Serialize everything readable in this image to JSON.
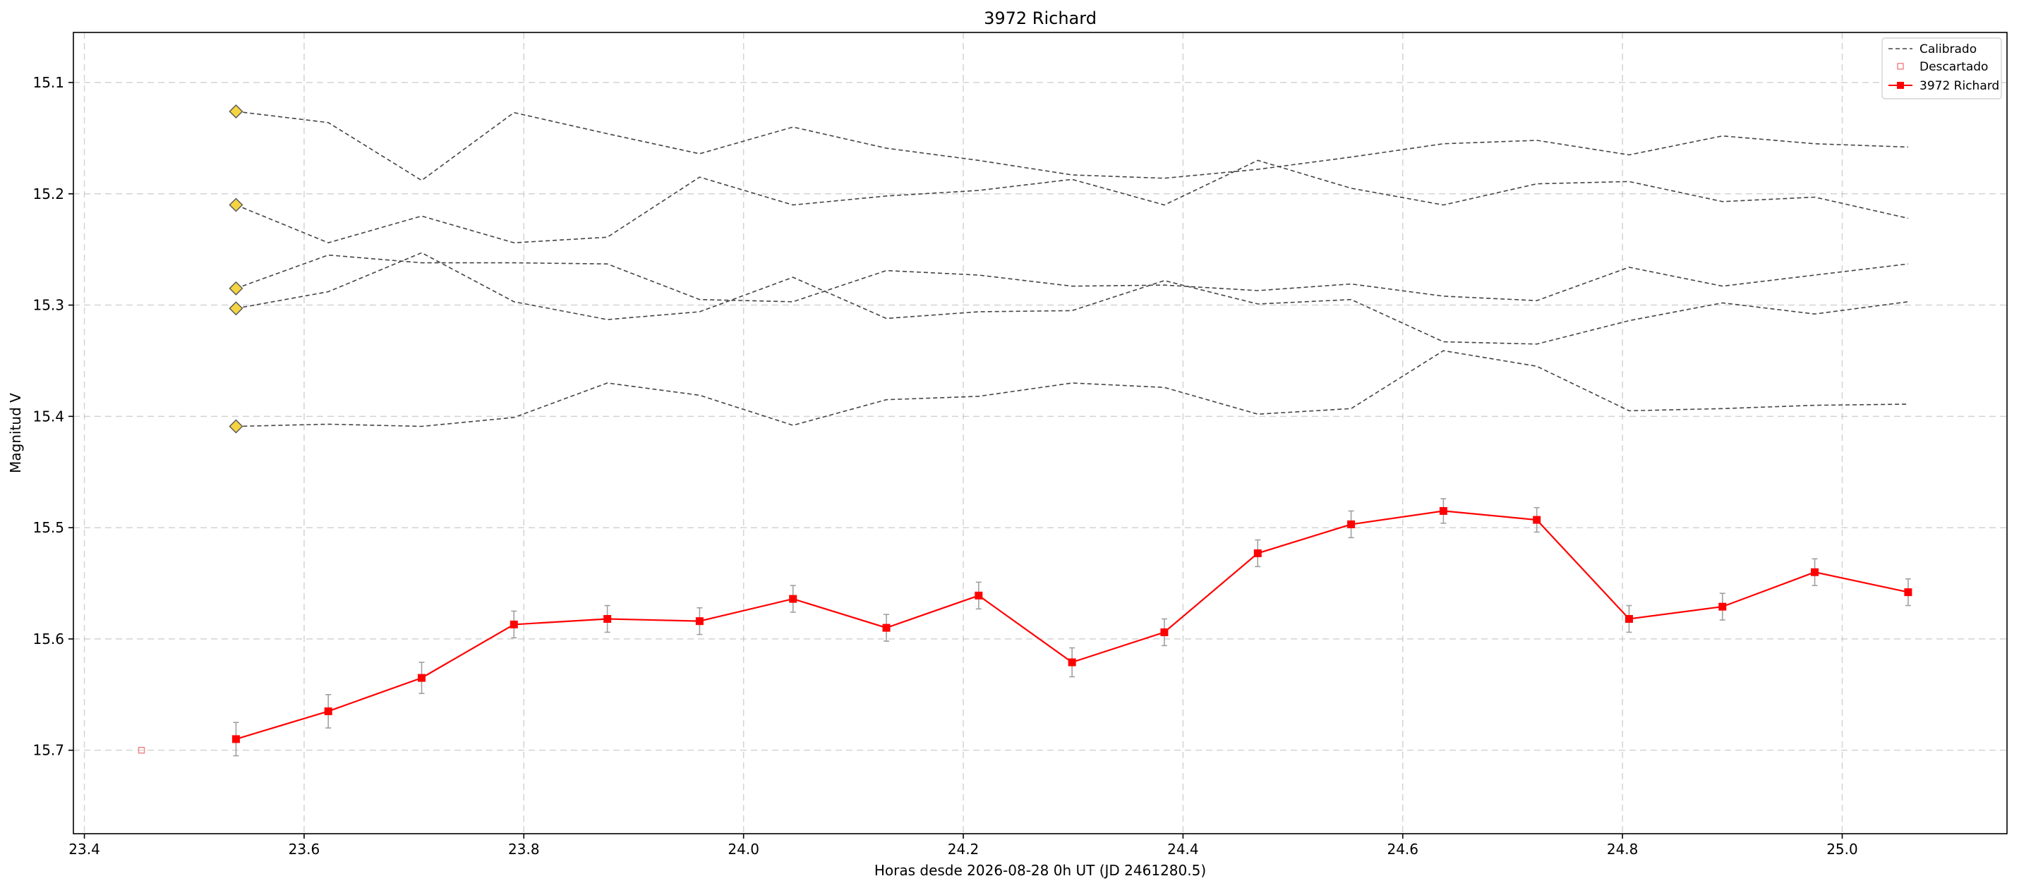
{
  "chart_data": {
    "type": "line",
    "title": "3972 Richard",
    "xlabel": "Horas desde 2026-08-28 0h UT (JD 2461280.5)",
    "ylabel": "Magnitud V",
    "xlim": [
      23.39,
      25.15
    ],
    "ylim": [
      15.775,
      15.055
    ],
    "y_inverted": true,
    "grid": true,
    "legend_position": "top-right",
    "x_ticks": [
      23.4,
      23.6,
      23.8,
      24.0,
      24.2,
      24.4,
      24.6,
      24.8,
      25.0
    ],
    "x_tick_labels": [
      "23.4",
      "23.6",
      "23.8",
      "24.0",
      "24.2",
      "24.4",
      "24.6",
      "24.8",
      "25.0"
    ],
    "y_ticks": [
      15.1,
      15.2,
      15.3,
      15.4,
      15.5,
      15.6,
      15.7
    ],
    "y_tick_labels": [
      "15.1",
      "15.2",
      "15.3",
      "15.4",
      "15.5",
      "15.6",
      "15.7"
    ],
    "legend": [
      {
        "label": "Calibrado",
        "style": "dashed-line",
        "color": "#444444"
      },
      {
        "label": "Descartado",
        "style": "hollow-square",
        "color": "#f08080"
      },
      {
        "label": "3972 Richard",
        "style": "line-square",
        "color": "#ff0000"
      }
    ],
    "x": [
      23.538,
      23.622,
      23.707,
      23.791,
      23.876,
      23.96,
      24.045,
      24.13,
      24.214,
      24.299,
      24.383,
      24.468,
      24.553,
      24.637,
      24.722,
      24.806,
      24.891,
      24.975,
      25.06
    ],
    "calibration_series": [
      {
        "values": [
          15.126,
          15.136,
          15.188,
          15.127,
          15.146,
          15.164,
          15.14,
          15.159,
          15.17,
          15.183,
          15.186,
          15.178,
          15.167,
          15.155,
          15.152,
          15.165,
          15.148,
          15.155,
          15.158
        ],
        "color": "#444444"
      },
      {
        "values": [
          15.21,
          15.244,
          15.22,
          15.244,
          15.239,
          15.185,
          15.21,
          15.202,
          15.197,
          15.187,
          15.21,
          15.17,
          15.195,
          15.21,
          15.191,
          15.189,
          15.207,
          15.203,
          15.222
        ],
        "color": "#444444"
      },
      {
        "values": [
          15.285,
          15.255,
          15.262,
          15.262,
          15.263,
          15.295,
          15.297,
          15.269,
          15.273,
          15.283,
          15.282,
          15.287,
          15.281,
          15.292,
          15.296,
          15.266,
          15.283,
          15.273,
          15.263
        ],
        "color": "#444444"
      },
      {
        "values": [
          15.303,
          15.288,
          15.253,
          15.297,
          15.313,
          15.306,
          15.275,
          15.312,
          15.306,
          15.305,
          15.278,
          15.299,
          15.295,
          15.333,
          15.335,
          15.314,
          15.298,
          15.308,
          15.297
        ],
        "color": "#444444"
      },
      {
        "values": [
          15.409,
          15.407,
          15.409,
          15.401,
          15.37,
          15.381,
          15.408,
          15.385,
          15.382,
          15.37,
          15.374,
          15.398,
          15.393,
          15.341,
          15.355,
          15.395,
          15.393,
          15.39,
          15.389
        ],
        "color": "#444444"
      }
    ],
    "reference_markers": {
      "x": 23.538,
      "values": [
        15.126,
        15.21,
        15.285,
        15.303,
        15.409
      ],
      "color": "#f5d442",
      "edge_color": "#555555"
    },
    "series": [
      {
        "name": "3972 Richard",
        "color": "#ff0000",
        "values": [
          15.69,
          15.665,
          15.635,
          15.587,
          15.582,
          15.584,
          15.564,
          15.59,
          15.561,
          15.621,
          15.594,
          15.523,
          15.497,
          15.485,
          15.493,
          15.582,
          15.571,
          15.54,
          15.558
        ],
        "errors": [
          0.015,
          0.015,
          0.014,
          0.012,
          0.012,
          0.012,
          0.012,
          0.012,
          0.012,
          0.013,
          0.012,
          0.012,
          0.012,
          0.011,
          0.011,
          0.012,
          0.012,
          0.012,
          0.012
        ]
      }
    ],
    "discarded_points": [
      {
        "x": 23.452,
        "y": 15.7,
        "color": "#f08080"
      }
    ],
    "error_bar_color": "#a0a0a0"
  }
}
